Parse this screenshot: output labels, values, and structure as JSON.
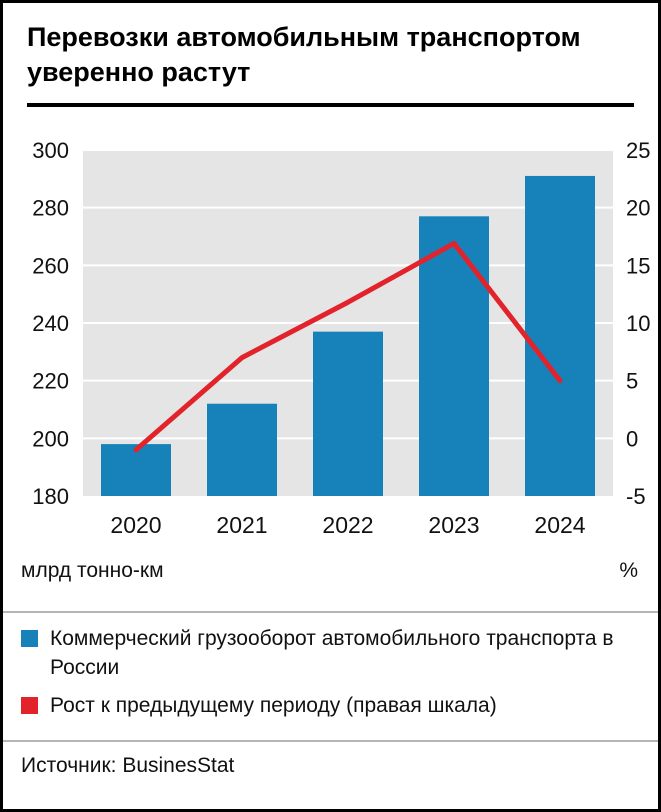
{
  "title": "Перевозки автомобильным транспортом уверенно растут",
  "chart_data": {
    "type": "bar",
    "subtype": "bar+line combo, dual axis",
    "categories": [
      "2020",
      "2021",
      "2022",
      "2023",
      "2024"
    ],
    "series": [
      {
        "name": "Коммерческий грузооборот автомобильного транспорта в России",
        "type": "bar",
        "axis": "left",
        "color": "#1782b9",
        "values": [
          198,
          212,
          237,
          277,
          291
        ]
      },
      {
        "name": "Рост к предыдущему периоду (правая шкала)",
        "type": "line",
        "axis": "right",
        "color": "#e2232b",
        "values": [
          -1,
          7,
          11.8,
          16.9,
          5
        ]
      }
    ],
    "left_axis": {
      "label": "млрд тонно-км",
      "min": 180,
      "max": 300,
      "step": 20
    },
    "right_axis": {
      "label": "%",
      "min": -5,
      "max": 25,
      "step": 5
    },
    "grid": "horizontal white gridlines on gray plot background",
    "plot_bg": "#e5e5e5",
    "grid_color": "#ffffff",
    "legend_position": "bottom"
  },
  "legend": {
    "items": [
      {
        "color": "#1782b9",
        "label": "Коммерческий грузооборот автомобильного транспорта в России"
      },
      {
        "color": "#e2232b",
        "label": "Рост к предыдущему периоду (правая шкала)"
      }
    ]
  },
  "source": "Источник: BusinesStat"
}
